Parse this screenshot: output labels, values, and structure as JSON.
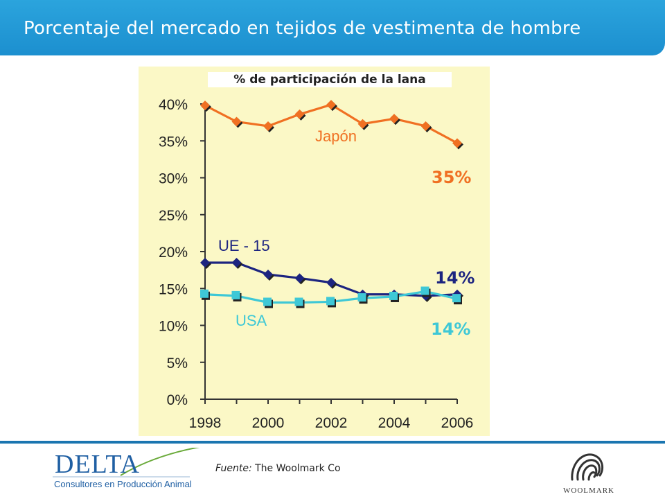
{
  "header": {
    "title": "Porcentaje del mercado en tejidos de vestimenta de hombre"
  },
  "chart_data": {
    "type": "line",
    "title": "% de participación de la lana",
    "x": [
      1998,
      1999,
      2000,
      2001,
      2002,
      2003,
      2004,
      2005,
      2006
    ],
    "x_tick_labels": [
      "1998",
      "2000",
      "2002",
      "2004",
      "2006"
    ],
    "y_tick_labels": [
      "0%",
      "5%",
      "10%",
      "15%",
      "20%",
      "25%",
      "30%",
      "35%",
      "40%"
    ],
    "ylim": [
      0,
      40
    ],
    "xlim": [
      1998,
      2006
    ],
    "xlabel": "",
    "ylabel": "",
    "series": [
      {
        "name": "Japón",
        "color": "#f07022",
        "marker": "diamond",
        "values": [
          39.8,
          37.6,
          37.0,
          38.6,
          39.9,
          37.3,
          38.0,
          37.0,
          34.7
        ],
        "end_label": "35%"
      },
      {
        "name": "UE - 15",
        "color": "#1c2480",
        "marker": "diamond",
        "values": [
          18.5,
          18.5,
          16.9,
          16.4,
          15.8,
          14.2,
          14.2,
          14.0,
          14.2
        ],
        "end_label": "14%"
      },
      {
        "name": "USA",
        "color": "#3ec8d6",
        "marker": "square",
        "values": [
          14.2,
          14.0,
          13.1,
          13.1,
          13.2,
          13.7,
          13.9,
          14.6,
          13.6
        ],
        "end_label": "14%"
      }
    ]
  },
  "footer": {
    "source_label": "Fuente:",
    "source_text": "The Woolmark Co",
    "delta_logo_word": "DELTA",
    "delta_logo_sub": "Consultores en Producción Animal",
    "woolmark_word": "WOOLMARK"
  }
}
